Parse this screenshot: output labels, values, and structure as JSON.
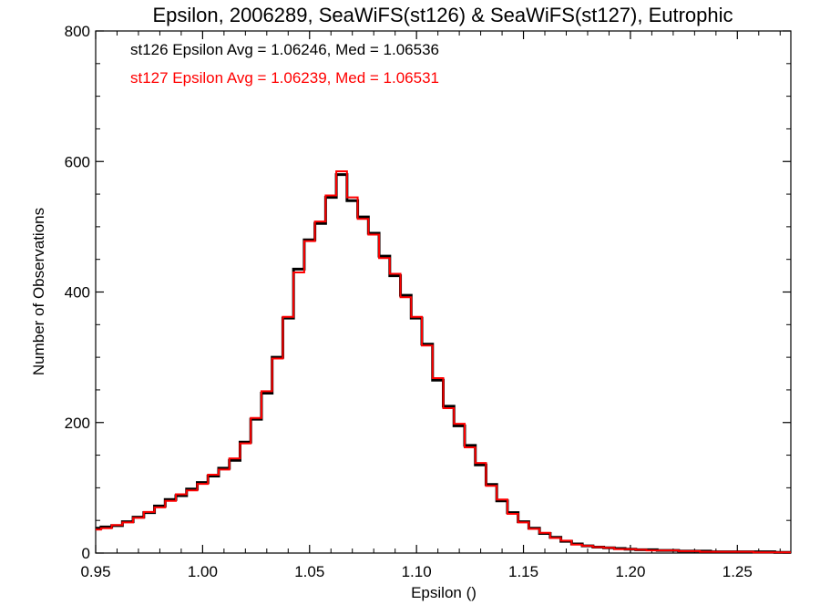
{
  "chart_data": {
    "type": "line",
    "title": "Epsilon, 2006289, SeaWiFS(st126) & SeaWiFS(st127), Eutrophic",
    "xlabel": "Epsilon ()",
    "ylabel": "Number of Observations",
    "xlim": [
      0.95,
      1.275
    ],
    "ylim": [
      0,
      800
    ],
    "x_ticks": [
      0.95,
      1.0,
      1.05,
      1.1,
      1.15,
      1.2,
      1.25
    ],
    "x_tick_labels": [
      "0.95",
      "1.00",
      "1.05",
      "1.10",
      "1.15",
      "1.20",
      "1.25"
    ],
    "y_ticks": [
      0,
      200,
      400,
      600,
      800
    ],
    "y_tick_labels": [
      "0",
      "200",
      "400",
      "600",
      "800"
    ],
    "grid": false,
    "step": true,
    "annotations": [
      {
        "text": "st126 Epsilon Avg = 1.06246, Med = 1.06536",
        "color": "#000000"
      },
      {
        "text": "st127 Epsilon Avg = 1.06239, Med = 1.06531",
        "color": "#ff0000"
      }
    ],
    "series": [
      {
        "color": "#000000",
        "x": [
          0.95,
          0.955,
          0.96,
          0.965,
          0.97,
          0.975,
          0.98,
          0.985,
          0.99,
          0.995,
          1.0,
          1.005,
          1.01,
          1.015,
          1.02,
          1.025,
          1.03,
          1.035,
          1.04,
          1.045,
          1.05,
          1.055,
          1.06,
          1.065,
          1.07,
          1.075,
          1.08,
          1.085,
          1.09,
          1.095,
          1.1,
          1.105,
          1.11,
          1.115,
          1.12,
          1.125,
          1.13,
          1.135,
          1.14,
          1.145,
          1.15,
          1.155,
          1.16,
          1.165,
          1.17,
          1.175,
          1.18,
          1.185,
          1.19,
          1.195,
          1.2,
          1.205,
          1.21,
          1.215,
          1.22,
          1.225,
          1.23,
          1.235,
          1.24,
          1.245,
          1.25,
          1.255,
          1.26,
          1.265,
          1.27,
          1.275
        ],
        "values": [
          38,
          40,
          42,
          48,
          55,
          62,
          72,
          82,
          88,
          98,
          108,
          118,
          130,
          142,
          170,
          205,
          245,
          300,
          360,
          435,
          480,
          505,
          545,
          580,
          540,
          515,
          490,
          455,
          425,
          395,
          360,
          320,
          265,
          225,
          195,
          165,
          135,
          105,
          80,
          62,
          48,
          38,
          30,
          24,
          18,
          14,
          11,
          9,
          8,
          7,
          6,
          5,
          5,
          4,
          4,
          3,
          3,
          3,
          2,
          2,
          2,
          2,
          2,
          2,
          1,
          1
        ]
      },
      {
        "color": "#ff0000",
        "x": [
          0.95,
          0.955,
          0.96,
          0.965,
          0.97,
          0.975,
          0.98,
          0.985,
          0.99,
          0.995,
          1.0,
          1.005,
          1.01,
          1.015,
          1.02,
          1.025,
          1.03,
          1.035,
          1.04,
          1.045,
          1.05,
          1.055,
          1.06,
          1.065,
          1.07,
          1.075,
          1.08,
          1.085,
          1.09,
          1.095,
          1.1,
          1.105,
          1.11,
          1.115,
          1.12,
          1.125,
          1.13,
          1.135,
          1.14,
          1.145,
          1.15,
          1.155,
          1.16,
          1.165,
          1.17,
          1.175,
          1.18,
          1.185,
          1.19,
          1.195,
          1.2,
          1.205,
          1.21,
          1.215,
          1.22,
          1.225,
          1.23,
          1.235,
          1.24,
          1.245,
          1.25,
          1.255,
          1.26,
          1.265,
          1.27,
          1.275
        ],
        "values": [
          36,
          38,
          43,
          47,
          54,
          63,
          70,
          80,
          90,
          96,
          106,
          120,
          128,
          145,
          168,
          207,
          248,
          298,
          362,
          430,
          478,
          508,
          548,
          585,
          545,
          512,
          488,
          452,
          428,
          392,
          362,
          318,
          268,
          222,
          198,
          162,
          138,
          103,
          82,
          60,
          47,
          37,
          31,
          23,
          19,
          13,
          11,
          9,
          8,
          6,
          6,
          5,
          4,
          4,
          4,
          3,
          3,
          2,
          2,
          2,
          2,
          2,
          1,
          1,
          1,
          1
        ]
      }
    ]
  }
}
